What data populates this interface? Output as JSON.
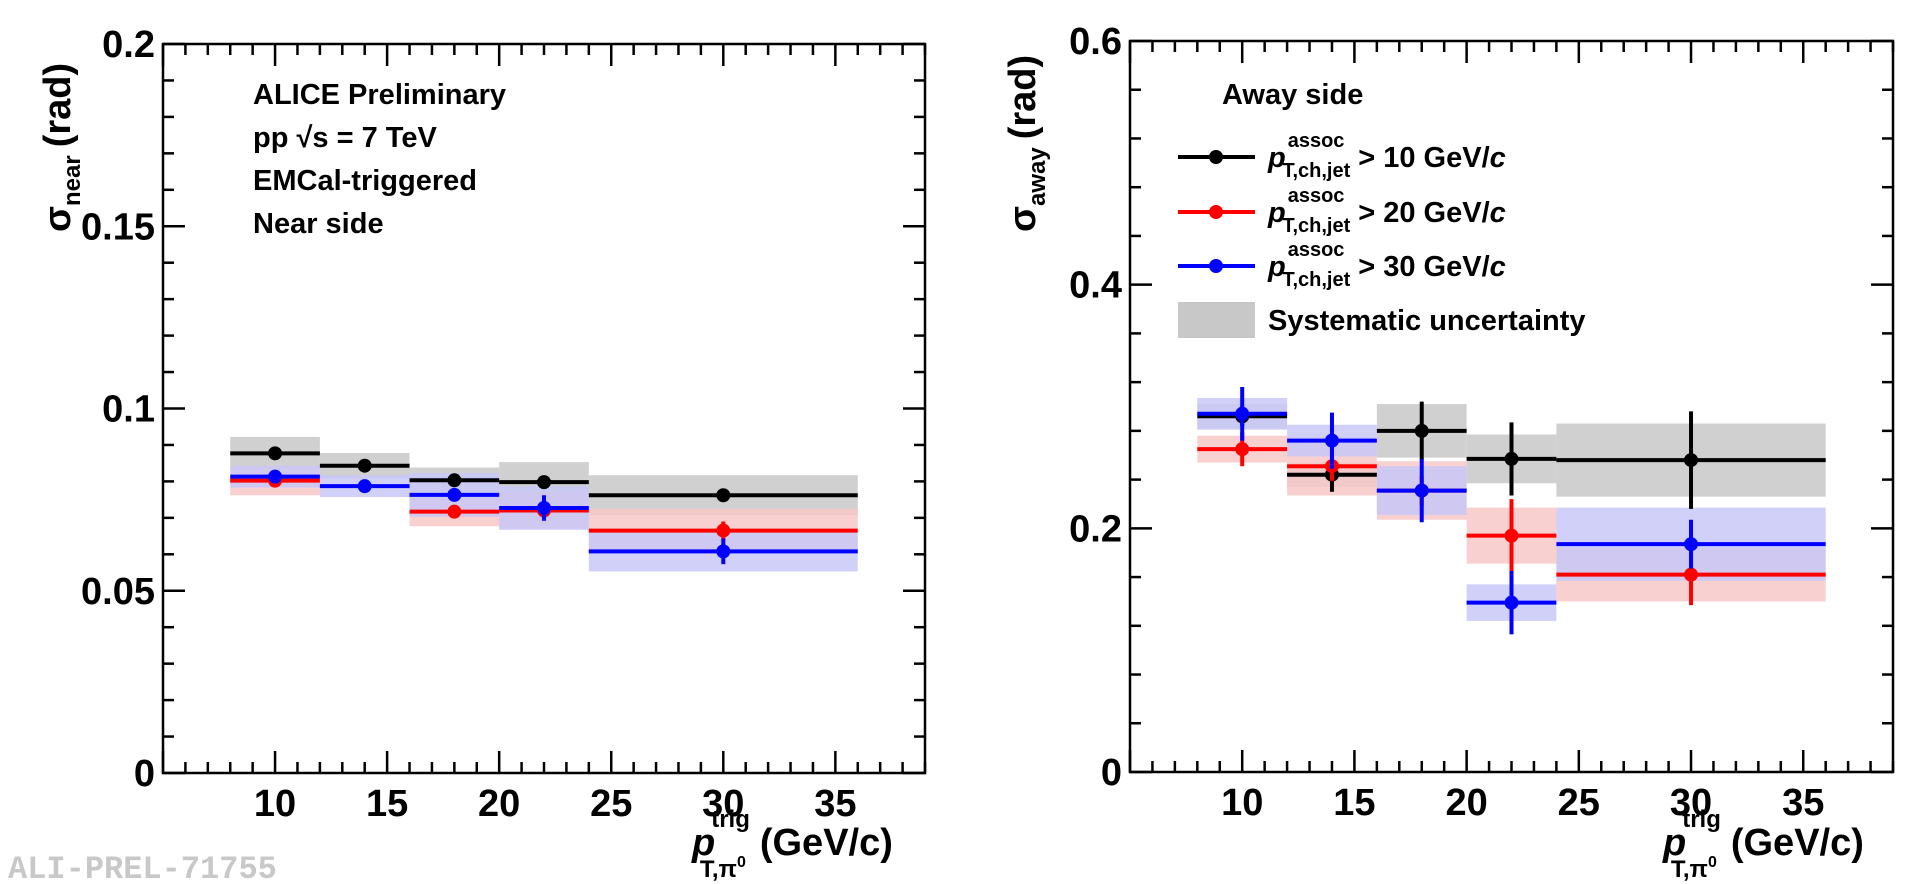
{
  "chart_data": [
    {
      "type": "scatter",
      "panel": "near",
      "ylabel": "σ_near (rad)",
      "ylabel_main": "σ",
      "ylabel_sub": "near",
      "ylabel_unit": "(rad)",
      "xlabel_main": "p",
      "xlabel_sup": "trig",
      "xlabel_sub": "T,π",
      "xlabel_sub2": "0",
      "xlabel_unit": "(GeV/c)",
      "xlim": [
        5,
        39
      ],
      "ylim": [
        0,
        0.2
      ],
      "xticks": [
        "10",
        "15",
        "20",
        "25",
        "30",
        "35"
      ],
      "yticks": [
        "0",
        "0.05",
        "0.1",
        "0.15",
        "0.2"
      ],
      "annotations": [
        "ALICE Preliminary",
        "pp  √s = 7 TeV",
        "EMCal-triggered",
        "Near side"
      ],
      "series": [
        {
          "name": "p_T,ch,jet^assoc > 10 GeV/c",
          "color": "#000000",
          "syst_color": "#c8c8c8",
          "points": [
            {
              "x": 10,
              "xlo": 8,
              "xhi": 12,
              "y": 0.0877,
              "err": 0.001,
              "syst": 0.0045
            },
            {
              "x": 14,
              "xlo": 12,
              "xhi": 16,
              "y": 0.0843,
              "err": 0.001,
              "syst": 0.0035
            },
            {
              "x": 18,
              "xlo": 16,
              "xhi": 20,
              "y": 0.0803,
              "err": 0.001,
              "syst": 0.0035
            },
            {
              "x": 22,
              "xlo": 20,
              "xhi": 24,
              "y": 0.0798,
              "err": 0.0015,
              "syst": 0.0055
            },
            {
              "x": 30,
              "xlo": 24,
              "xhi": 36,
              "y": 0.0762,
              "err": 0.0015,
              "syst": 0.0055
            }
          ]
        },
        {
          "name": "p_T,ch,jet^assoc > 20 GeV/c",
          "color": "#ff0000",
          "syst_color": "#f8c8c8",
          "points": [
            {
              "x": 10,
              "xlo": 8,
              "xhi": 12,
              "y": 0.0802,
              "err": 0.001,
              "syst": 0.004
            },
            {
              "x": 18,
              "xlo": 16,
              "xhi": 20,
              "y": 0.0717,
              "err": 0.001,
              "syst": 0.004
            },
            {
              "x": 22,
              "xlo": 20,
              "xhi": 24,
              "y": 0.072,
              "err": 0.002,
              "syst": 0.005
            },
            {
              "x": 30,
              "xlo": 24,
              "xhi": 36,
              "y": 0.0665,
              "err": 0.0025,
              "syst": 0.006
            }
          ]
        },
        {
          "name": "p_T,ch,jet^assoc > 30 GeV/c",
          "color": "#0000ff",
          "syst_color": "#c8c8f8",
          "points": [
            {
              "x": 10,
              "xlo": 8,
              "xhi": 12,
              "y": 0.0813,
              "err": 0.001,
              "syst": 0.003
            },
            {
              "x": 14,
              "xlo": 12,
              "xhi": 16,
              "y": 0.0787,
              "err": 0.001,
              "syst": 0.003
            },
            {
              "x": 18,
              "xlo": 16,
              "xhi": 20,
              "y": 0.0763,
              "err": 0.0015,
              "syst": 0.006
            },
            {
              "x": 22,
              "xlo": 20,
              "xhi": 24,
              "y": 0.0727,
              "err": 0.0035,
              "syst": 0.006
            },
            {
              "x": 30,
              "xlo": 24,
              "xhi": 36,
              "y": 0.0608,
              "err": 0.0035,
              "syst": 0.0055
            }
          ]
        }
      ]
    },
    {
      "type": "scatter",
      "panel": "away",
      "ylabel": "σ_away (rad)",
      "ylabel_main": "σ",
      "ylabel_sub": "away",
      "ylabel_unit": "(rad)",
      "xlabel_main": "p",
      "xlabel_sup": "trig",
      "xlabel_sub": "T,π",
      "xlabel_sub2": "0",
      "xlabel_unit": "(GeV/c)",
      "xlim": [
        5,
        39
      ],
      "ylim": [
        0,
        0.6
      ],
      "xticks": [
        "10",
        "15",
        "20",
        "25",
        "30",
        "35"
      ],
      "yticks": [
        "0",
        "0.2",
        "0.4",
        "0.6"
      ],
      "legend": {
        "title": "Away side",
        "entries": [
          {
            "main": "p",
            "sup": "assoc",
            "sub": "T,ch,jet",
            "tail": "> 10 GeV/",
            "unit": "c",
            "color": "#000000"
          },
          {
            "main": "p",
            "sup": "assoc",
            "sub": "T,ch,jet",
            "tail": "> 20 GeV/",
            "unit": "c",
            "color": "#ff0000"
          },
          {
            "main": "p",
            "sup": "assoc",
            "sub": "T,ch,jet",
            "tail": "> 30 GeV/",
            "unit": "c",
            "color": "#0000ff"
          }
        ],
        "syst_label": "Systematic uncertainty",
        "syst_color": "#c8c8c8"
      },
      "series": [
        {
          "name": "p_T,ch,jet^assoc > 10 GeV/c",
          "color": "#000000",
          "syst_color": "#c8c8c8",
          "points": [
            {
              "x": 10,
              "xlo": 8,
              "xhi": 12,
              "y": 0.292,
              "err": 0.008,
              "syst": 0.01
            },
            {
              "x": 14,
              "xlo": 12,
              "xhi": 16,
              "y": 0.244,
              "err": 0.014,
              "syst": 0.01
            },
            {
              "x": 18,
              "xlo": 16,
              "xhi": 20,
              "y": 0.28,
              "err": 0.024,
              "syst": 0.022
            },
            {
              "x": 22,
              "xlo": 20,
              "xhi": 24,
              "y": 0.257,
              "err": 0.03,
              "syst": 0.02
            },
            {
              "x": 30,
              "xlo": 24,
              "xhi": 36,
              "y": 0.256,
              "err": 0.04,
              "syst": 0.03
            }
          ]
        },
        {
          "name": "p_T,ch,jet^assoc > 20 GeV/c",
          "color": "#ff0000",
          "syst_color": "#f8c8c8",
          "points": [
            {
              "x": 10,
              "xlo": 8,
              "xhi": 12,
              "y": 0.265,
              "err": 0.014,
              "syst": 0.011
            },
            {
              "x": 14,
              "xlo": 12,
              "xhi": 16,
              "y": 0.251,
              "err": 0.012,
              "syst": 0.024
            },
            {
              "x": 18,
              "xlo": 16,
              "xhi": 20,
              "y": 0.231,
              "err": 0.012,
              "syst": 0.024
            },
            {
              "x": 22,
              "xlo": 20,
              "xhi": 24,
              "y": 0.194,
              "err": 0.03,
              "syst": 0.023
            },
            {
              "x": 30,
              "xlo": 24,
              "xhi": 36,
              "y": 0.162,
              "err": 0.025,
              "syst": 0.022
            }
          ]
        },
        {
          "name": "p_T,ch,jet^assoc > 30 GeV/c",
          "color": "#0000ff",
          "syst_color": "#c8c8f8",
          "points": [
            {
              "x": 10,
              "xlo": 8,
              "xhi": 12,
              "y": 0.294,
              "err": 0.022,
              "syst": 0.013
            },
            {
              "x": 14,
              "xlo": 12,
              "xhi": 16,
              "y": 0.272,
              "err": 0.023,
              "syst": 0.013
            },
            {
              "x": 18,
              "xlo": 16,
              "xhi": 20,
              "y": 0.231,
              "err": 0.026,
              "syst": 0.02
            },
            {
              "x": 22,
              "xlo": 20,
              "xhi": 24,
              "y": 0.139,
              "err": 0.026,
              "syst": 0.015
            },
            {
              "x": 30,
              "xlo": 24,
              "xhi": 36,
              "y": 0.187,
              "err": 0.02,
              "syst": 0.03
            }
          ]
        }
      ]
    }
  ],
  "watermark": "ALI-PREL-71755"
}
